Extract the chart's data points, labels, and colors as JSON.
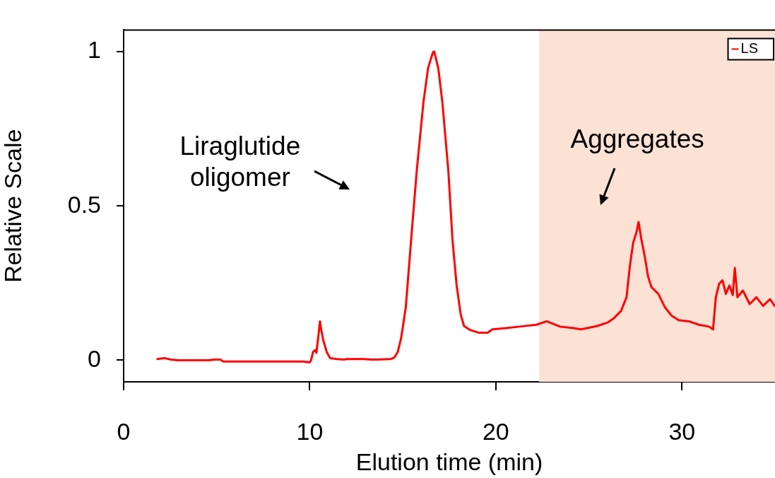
{
  "chart_data": {
    "type": "line",
    "xlabel": "Elution time (min)",
    "ylabel": "Relative Scale",
    "xlim": [
      0,
      35
    ],
    "xticks": [
      0,
      10,
      20,
      30
    ],
    "ylim": [
      -0.07,
      1.07
    ],
    "yticks": [
      0,
      0.5,
      1
    ],
    "grid": false,
    "legend": "top right",
    "marker": "none",
    "line_style": "solid",
    "annotations": [
      "Liraglutide\noligomer",
      "Aggregates"
    ],
    "bands": [
      {
        "axis": "x",
        "from": 22.33,
        "to": 35,
        "color": "#fbe2d5"
      }
    ],
    "series": [
      {
        "name": "LS",
        "color": "#ff0000",
        "x": [
          1.82,
          2.18,
          2.55,
          2.91,
          4.55,
          4.91,
          5.2,
          5.35,
          9.64,
          10.0,
          10.07,
          10.18,
          10.29,
          10.36,
          10.47,
          10.55,
          10.62,
          10.73,
          10.91,
          11.09,
          11.45,
          11.82,
          12.0,
          12.91,
          13.27,
          13.64,
          14.36,
          14.55,
          14.73,
          14.91,
          15.16,
          15.45,
          15.75,
          16.11,
          16.36,
          16.62,
          16.69,
          16.91,
          17.13,
          17.45,
          17.67,
          17.89,
          18.11,
          18.29,
          18.62,
          19.09,
          19.56,
          19.82,
          20.55,
          21.27,
          22.18,
          22.73,
          23.45,
          24.18,
          24.55,
          24.91,
          25.45,
          26.0,
          26.36,
          26.73,
          27.02,
          27.2,
          27.38,
          27.56,
          27.67,
          27.82,
          28.0,
          28.18,
          28.36,
          28.73,
          29.09,
          29.45,
          29.82,
          30.36,
          30.91,
          31.45,
          31.67,
          31.82,
          32.0,
          32.18,
          32.36,
          32.55,
          32.73,
          32.84,
          32.98,
          33.27,
          33.64,
          34.0,
          34.36,
          34.73,
          34.98
        ],
        "values": [
          0.004,
          0.007,
          0.002,
          0,
          0,
          0.002,
          0.002,
          -0.004,
          -0.004,
          -0.007,
          0,
          0.027,
          0.033,
          0.024,
          0.082,
          0.126,
          0.098,
          0.064,
          0.027,
          0.007,
          0.004,
          0.002,
          0.004,
          0.004,
          0.002,
          0.002,
          0.004,
          0.009,
          0.027,
          0.071,
          0.171,
          0.392,
          0.614,
          0.836,
          0.947,
          0.998,
          1.0,
          0.945,
          0.834,
          0.612,
          0.39,
          0.244,
          0.149,
          0.111,
          0.098,
          0.089,
          0.089,
          0.1,
          0.104,
          0.109,
          0.115,
          0.126,
          0.109,
          0.104,
          0.1,
          0.104,
          0.111,
          0.122,
          0.137,
          0.16,
          0.204,
          0.304,
          0.381,
          0.415,
          0.448,
          0.392,
          0.337,
          0.271,
          0.237,
          0.215,
          0.171,
          0.144,
          0.13,
          0.126,
          0.115,
          0.109,
          0.1,
          0.204,
          0.248,
          0.259,
          0.215,
          0.242,
          0.211,
          0.299,
          0.204,
          0.226,
          0.182,
          0.204,
          0.176,
          0.198,
          0.176
        ]
      }
    ]
  }
}
